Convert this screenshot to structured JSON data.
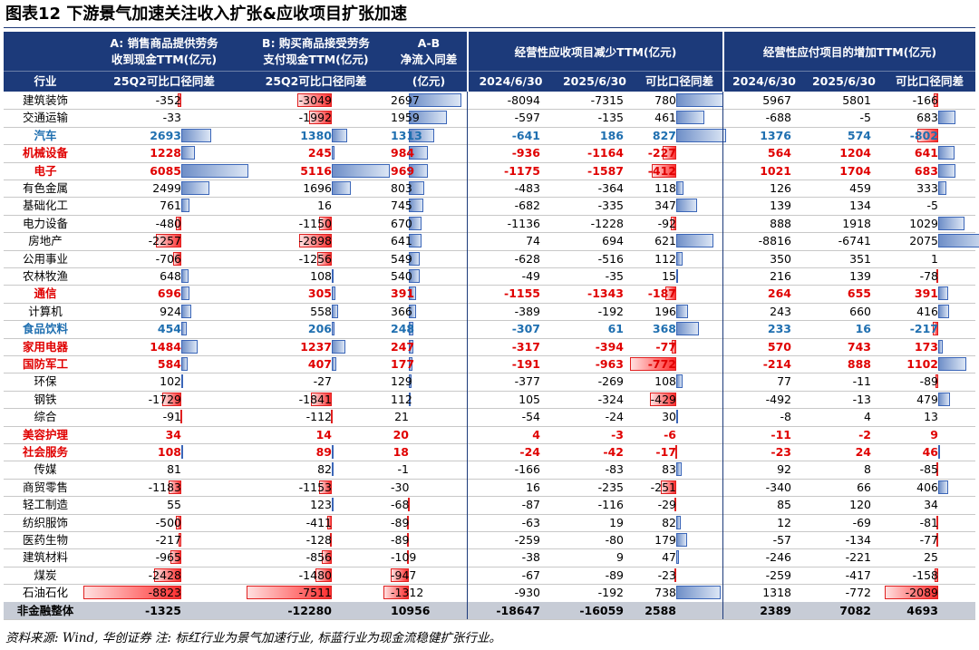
{
  "title": "图表12  下游景气加速关注收入扩张&应收项目扩张加速",
  "headers": {
    "A_line1": "A: 销售商品提供劳务",
    "A_line2": "收到现金TTM(亿元)",
    "B_line1": "B: 购买商品接受劳务",
    "B_line2": "支付现金TTM(亿元)",
    "AB_line1": "A-B",
    "AB_line2": "净流入同差",
    "AB_line3": "(亿元)",
    "rec_group": "经营性应收项目减少TTM(亿元)",
    "pay_group": "经营性应付项目的增加TTM(亿元)",
    "industry": "行业",
    "A_sub": "25Q2可比口径同差",
    "B_sub": "25Q2可比口径同差",
    "rec_c1": "2024/6/30",
    "rec_c2": "2025/6/30",
    "rec_c3": "可比口径同差",
    "pay_c1": "2024/6/30",
    "pay_c2": "2025/6/30",
    "pay_c3": "可比口径同差"
  },
  "rows": [
    {
      "name": "建筑装饰",
      "hl": "",
      "a": "-352",
      "b": "-3049",
      "ab": "2697",
      "r1": "-8094",
      "r2": "-7315",
      "r3": "780",
      "p1": "5967",
      "p2": "5801",
      "p3": "-166"
    },
    {
      "name": "交通运输",
      "hl": "",
      "a": "-33",
      "b": "-1992",
      "ab": "1959",
      "r1": "-597",
      "r2": "-135",
      "r3": "461",
      "p1": "-688",
      "p2": "-5",
      "p3": "683"
    },
    {
      "name": "汽车",
      "hl": "blue",
      "a": "2693",
      "b": "1380",
      "ab": "1313",
      "r1": "-641",
      "r2": "186",
      "r3": "827",
      "p1": "1376",
      "p2": "574",
      "p3": "-802"
    },
    {
      "name": "机械设备",
      "hl": "red",
      "a": "1228",
      "b": "245",
      "ab": "984",
      "r1": "-936",
      "r2": "-1164",
      "r3": "-227",
      "p1": "564",
      "p2": "1204",
      "p3": "641"
    },
    {
      "name": "电子",
      "hl": "red",
      "a": "6085",
      "b": "5116",
      "ab": "969",
      "r1": "-1175",
      "r2": "-1587",
      "r3": "-412",
      "p1": "1021",
      "p2": "1704",
      "p3": "683"
    },
    {
      "name": "有色金属",
      "hl": "",
      "a": "2499",
      "b": "1696",
      "ab": "803",
      "r1": "-483",
      "r2": "-364",
      "r3": "118",
      "p1": "126",
      "p2": "459",
      "p3": "333"
    },
    {
      "name": "基础化工",
      "hl": "",
      "a": "761",
      "b": "16",
      "ab": "745",
      "r1": "-682",
      "r2": "-335",
      "r3": "347",
      "p1": "139",
      "p2": "134",
      "p3": "-5"
    },
    {
      "name": "电力设备",
      "hl": "",
      "a": "-480",
      "b": "-1150",
      "ab": "670",
      "r1": "-1136",
      "r2": "-1228",
      "r3": "-92",
      "p1": "888",
      "p2": "1918",
      "p3": "1029"
    },
    {
      "name": "房地产",
      "hl": "",
      "a": "-2257",
      "b": "-2898",
      "ab": "641",
      "r1": "74",
      "r2": "694",
      "r3": "621",
      "p1": "-8816",
      "p2": "-6741",
      "p3": "2075"
    },
    {
      "name": "公用事业",
      "hl": "",
      "a": "-706",
      "b": "-1256",
      "ab": "549",
      "r1": "-628",
      "r2": "-516",
      "r3": "112",
      "p1": "350",
      "p2": "351",
      "p3": "1"
    },
    {
      "name": "农林牧渔",
      "hl": "",
      "a": "648",
      "b": "108",
      "ab": "540",
      "r1": "-49",
      "r2": "-35",
      "r3": "15",
      "p1": "216",
      "p2": "139",
      "p3": "-78"
    },
    {
      "name": "通信",
      "hl": "red",
      "a": "696",
      "b": "305",
      "ab": "391",
      "r1": "-1155",
      "r2": "-1343",
      "r3": "-187",
      "p1": "264",
      "p2": "655",
      "p3": "391"
    },
    {
      "name": "计算机",
      "hl": "",
      "a": "924",
      "b": "558",
      "ab": "366",
      "r1": "-389",
      "r2": "-192",
      "r3": "196",
      "p1": "243",
      "p2": "660",
      "p3": "416"
    },
    {
      "name": "食品饮料",
      "hl": "blue",
      "a": "454",
      "b": "206",
      "ab": "248",
      "r1": "-307",
      "r2": "61",
      "r3": "368",
      "p1": "233",
      "p2": "16",
      "p3": "-217"
    },
    {
      "name": "家用电器",
      "hl": "red",
      "a": "1484",
      "b": "1237",
      "ab": "247",
      "r1": "-317",
      "r2": "-394",
      "r3": "-77",
      "p1": "570",
      "p2": "743",
      "p3": "173"
    },
    {
      "name": "国防军工",
      "hl": "red",
      "a": "584",
      "b": "407",
      "ab": "177",
      "r1": "-191",
      "r2": "-963",
      "r3": "-772",
      "p1": "-214",
      "p2": "888",
      "p3": "1102"
    },
    {
      "name": "环保",
      "hl": "",
      "a": "102",
      "b": "-27",
      "ab": "129",
      "r1": "-377",
      "r2": "-269",
      "r3": "108",
      "p1": "77",
      "p2": "-11",
      "p3": "-89"
    },
    {
      "name": "钢铁",
      "hl": "",
      "a": "-1729",
      "b": "-1841",
      "ab": "112",
      "r1": "105",
      "r2": "-324",
      "r3": "-429",
      "p1": "-492",
      "p2": "-13",
      "p3": "479"
    },
    {
      "name": "综合",
      "hl": "",
      "a": "-91",
      "b": "-112",
      "ab": "21",
      "r1": "-54",
      "r2": "-24",
      "r3": "30",
      "p1": "-8",
      "p2": "4",
      "p3": "13"
    },
    {
      "name": "美容护理",
      "hl": "red",
      "a": "34",
      "b": "14",
      "ab": "20",
      "r1": "4",
      "r2": "-3",
      "r3": "-6",
      "p1": "-11",
      "p2": "-2",
      "p3": "9"
    },
    {
      "name": "社会服务",
      "hl": "red",
      "a": "108",
      "b": "89",
      "ab": "18",
      "r1": "-24",
      "r2": "-42",
      "r3": "-17",
      "p1": "-23",
      "p2": "24",
      "p3": "46"
    },
    {
      "name": "传媒",
      "hl": "",
      "a": "81",
      "b": "82",
      "ab": "-1",
      "r1": "-166",
      "r2": "-83",
      "r3": "83",
      "p1": "92",
      "p2": "8",
      "p3": "-85"
    },
    {
      "name": "商贸零售",
      "hl": "",
      "a": "-1183",
      "b": "-1153",
      "ab": "-30",
      "r1": "16",
      "r2": "-235",
      "r3": "-251",
      "p1": "-340",
      "p2": "66",
      "p3": "406"
    },
    {
      "name": "轻工制造",
      "hl": "",
      "a": "55",
      "b": "123",
      "ab": "-68",
      "r1": "-87",
      "r2": "-116",
      "r3": "-29",
      "p1": "85",
      "p2": "120",
      "p3": "34"
    },
    {
      "name": "纺织服饰",
      "hl": "",
      "a": "-500",
      "b": "-411",
      "ab": "-89",
      "r1": "-63",
      "r2": "19",
      "r3": "82",
      "p1": "12",
      "p2": "-69",
      "p3": "-81"
    },
    {
      "name": "医药生物",
      "hl": "",
      "a": "-217",
      "b": "-128",
      "ab": "-89",
      "r1": "-259",
      "r2": "-80",
      "r3": "179",
      "p1": "-57",
      "p2": "-134",
      "p3": "-77"
    },
    {
      "name": "建筑材料",
      "hl": "",
      "a": "-965",
      "b": "-856",
      "ab": "-109",
      "r1": "-38",
      "r2": "9",
      "r3": "47",
      "p1": "-246",
      "p2": "-221",
      "p3": "25"
    },
    {
      "name": "煤炭",
      "hl": "",
      "a": "-2428",
      "b": "-1480",
      "ab": "-947",
      "r1": "-67",
      "r2": "-89",
      "r3": "-23",
      "p1": "-259",
      "p2": "-417",
      "p3": "-158"
    },
    {
      "name": "石油石化",
      "hl": "",
      "a": "-8823",
      "b": "-7511",
      "ab": "-1312",
      "r1": "-930",
      "r2": "-192",
      "r3": "738",
      "p1": "1318",
      "p2": "-772",
      "p3": "-2089"
    }
  ],
  "total": {
    "name": "非金融整体",
    "a": "-1325",
    "b": "-12280",
    "ab": "10956",
    "r1": "-18647",
    "r2": "-16059",
    "r3": "2588",
    "p1": "2389",
    "p2": "7082",
    "p3": "4693"
  },
  "footnote": "资料来源: Wind, 华创证券 注: 标红行业为景气加速行业, 标蓝行业为现金流稳健扩张行业。",
  "colors": {
    "header_bg": "#1c3a7a",
    "pos_bar": "#6f8fc8",
    "neg_bar": "#ff3030",
    "highlight_red": "#e00000",
    "highlight_blue": "#1f6fb0",
    "total_bg": "#c7ccd6"
  }
}
